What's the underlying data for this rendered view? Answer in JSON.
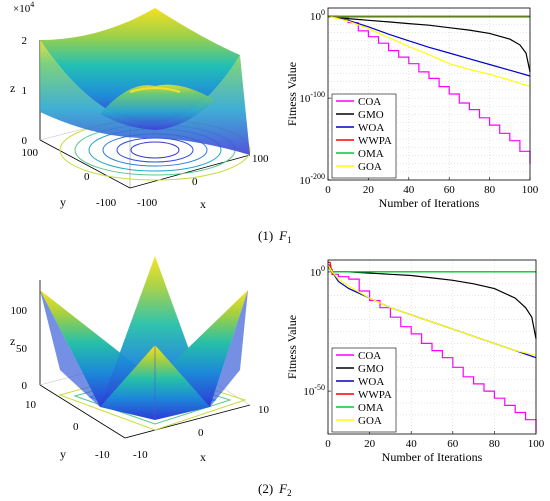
{
  "captions": [
    {
      "index": "(1)",
      "func": "F",
      "sub": "1"
    },
    {
      "index": "(2)",
      "func": "F",
      "sub": "2"
    }
  ],
  "colors": {
    "COA": "#ff00ff",
    "GMO": "#000000",
    "WOA": "#0000cc",
    "WWPA": "#ff0000",
    "OMA": "#00cc33",
    "GOA": "#ffff00"
  },
  "surface_plots": [
    {
      "panel": "F1",
      "zlabel": "z",
      "xlabel": "x",
      "ylabel": "y",
      "exponent_label": "×10",
      "exponent_power": "4",
      "z_ticks": [
        "2",
        "1",
        "0"
      ],
      "y_ticks": [
        "100",
        "0",
        "-100"
      ],
      "x_ticks": [
        "100",
        "0",
        "-100"
      ],
      "shape": "paraboloid"
    },
    {
      "panel": "F2",
      "zlabel": "z",
      "xlabel": "x",
      "ylabel": "y",
      "z_ticks": [
        "100",
        "50",
        "0"
      ],
      "y_ticks": [
        "10",
        "0",
        "-10"
      ],
      "x_ticks": [
        "10",
        "0",
        "-10"
      ],
      "shape": "pyramid"
    }
  ],
  "chart_data": [
    {
      "type": "line",
      "panel": "F1",
      "xlabel": "Number of Iterations",
      "ylabel": "Fitness Value",
      "xlim": [
        0,
        100
      ],
      "ylim": [
        -200,
        10
      ],
      "yscale": "log",
      "x_ticks": [
        "0",
        "20",
        "40",
        "60",
        "80",
        "100"
      ],
      "y_ticks": [
        {
          "base": "10",
          "exp": "0",
          "v": 0
        },
        {
          "base": "10",
          "exp": "-100",
          "v": -100
        },
        {
          "base": "10",
          "exp": "-200",
          "v": -200
        }
      ],
      "grid": true,
      "legend_position": "bottom-left",
      "series": [
        {
          "name": "COA",
          "x": [
            0,
            5,
            10,
            15,
            20,
            25,
            30,
            35,
            40,
            45,
            50,
            55,
            60,
            65,
            70,
            75,
            80,
            85,
            90,
            95,
            100
          ],
          "log10_y": [
            0,
            -2,
            -8,
            -18,
            -25,
            -33,
            -42,
            -50,
            -58,
            -68,
            -76,
            -86,
            -95,
            -106,
            -114,
            -124,
            -133,
            -143,
            -152,
            -165,
            -180
          ]
        },
        {
          "name": "GMO",
          "x": [
            0,
            10,
            20,
            30,
            40,
            50,
            60,
            70,
            80,
            90,
            95,
            98,
            100
          ],
          "log10_y": [
            0,
            -3,
            -5,
            -7,
            -9,
            -11,
            -14,
            -17,
            -21,
            -28,
            -35,
            -45,
            -68
          ]
        },
        {
          "name": "WOA",
          "x": [
            0,
            10,
            20,
            30,
            40,
            50,
            60,
            70,
            80,
            90,
            100
          ],
          "log10_y": [
            0,
            -5,
            -13,
            -22,
            -30,
            -38,
            -45,
            -52,
            -59,
            -66,
            -73
          ]
        },
        {
          "name": "WWPA",
          "x": [
            0,
            100
          ],
          "log10_y": [
            0,
            0
          ]
        },
        {
          "name": "OMA",
          "x": [
            0,
            100
          ],
          "log10_y": [
            -1,
            -1
          ]
        },
        {
          "name": "GOA",
          "x": [
            0,
            10,
            20,
            30,
            40,
            50,
            60,
            70,
            80,
            90,
            100
          ],
          "log10_y": [
            0,
            -6,
            -15,
            -26,
            -37,
            -47,
            -58,
            -65,
            -71,
            -78,
            -86
          ]
        }
      ]
    },
    {
      "type": "line",
      "panel": "F2",
      "xlabel": "Number of Iterations",
      "ylabel": "Fitness Value",
      "xlim": [
        0,
        100
      ],
      "ylim": [
        -68,
        5
      ],
      "yscale": "log",
      "x_ticks": [
        "0",
        "20",
        "40",
        "60",
        "80",
        "100"
      ],
      "y_ticks": [
        {
          "base": "10",
          "exp": "0",
          "v": 0
        },
        {
          "base": "10",
          "exp": "-50",
          "v": -50
        }
      ],
      "grid": true,
      "legend_position": "bottom-left",
      "series": [
        {
          "name": "COA",
          "x": [
            0,
            1,
            2,
            5,
            10,
            15,
            20,
            25,
            30,
            35,
            40,
            45,
            50,
            55,
            60,
            65,
            70,
            75,
            80,
            85,
            90,
            95,
            100
          ],
          "log10_y": [
            3,
            1,
            -1,
            -2,
            -3,
            -8,
            -12,
            -15,
            -19,
            -23,
            -26,
            -30,
            -33,
            -36,
            -40,
            -44,
            -47,
            -50,
            -53,
            -56,
            -59,
            -62,
            -67
          ]
        },
        {
          "name": "GMO",
          "x": [
            0,
            2,
            10,
            20,
            30,
            40,
            50,
            60,
            70,
            80,
            90,
            95,
            98,
            100
          ],
          "log10_y": [
            3,
            0,
            0,
            -0.5,
            -1,
            -1.5,
            -2.5,
            -3.5,
            -5,
            -7,
            -11,
            -15,
            -19,
            -28
          ]
        },
        {
          "name": "WOA",
          "x": [
            0,
            2,
            5,
            10,
            20,
            30,
            40,
            50,
            60,
            70,
            80,
            90,
            100
          ],
          "log10_y": [
            3,
            0,
            -4,
            -7,
            -11,
            -15,
            -18,
            -21,
            -24,
            -27,
            -30,
            -33,
            -36
          ]
        },
        {
          "name": "WWPA",
          "x": [
            0,
            1,
            2,
            3,
            100
          ],
          "log10_y": [
            4,
            4,
            -1,
            0,
            0
          ]
        },
        {
          "name": "OMA",
          "x": [
            0,
            1,
            2,
            100
          ],
          "log10_y": [
            2,
            1,
            0,
            0
          ]
        },
        {
          "name": "GOA",
          "x": [
            0,
            2,
            5,
            10,
            20,
            30,
            40,
            50,
            60,
            70,
            80,
            90,
            100
          ],
          "log10_y": [
            3,
            0,
            -3,
            -6,
            -11,
            -15,
            -18,
            -21,
            -24,
            -27,
            -30,
            -33,
            -35
          ]
        }
      ]
    }
  ]
}
